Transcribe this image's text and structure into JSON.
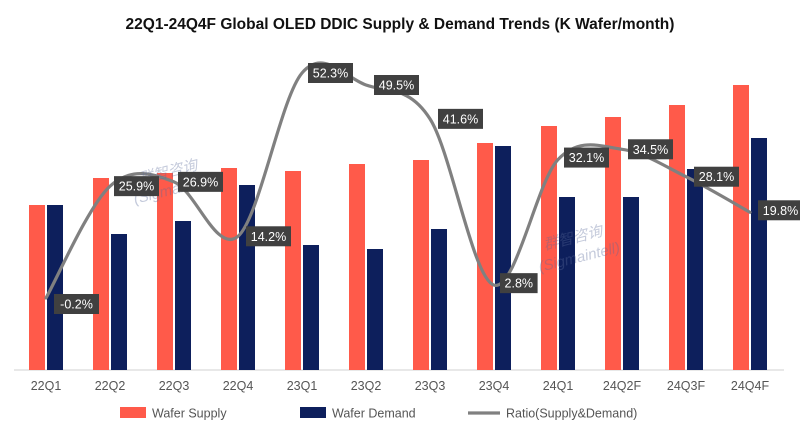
{
  "chart_data": {
    "type": "bar+line",
    "title": "22Q1-24Q4F Global OLED DDIC Supply & Demand Trends (K Wafer/month)",
    "categories": [
      "22Q1",
      "22Q2",
      "22Q3",
      "22Q4",
      "23Q1",
      "23Q2",
      "23Q3",
      "23Q4",
      "24Q1",
      "24Q2F",
      "24Q3F",
      "24Q4F"
    ],
    "series": [
      {
        "name": "Wafer Supply",
        "type": "bar",
        "color": "#ff5a4a",
        "values": [
          165,
          192,
          197,
          202,
          199,
          206,
          210,
          227,
          244,
          253,
          265,
          285
        ]
      },
      {
        "name": "Wafer Demand",
        "type": "bar",
        "color": "#0d1f5c",
        "values": [
          165,
          136,
          149,
          185,
          125,
          121,
          141,
          224,
          173,
          173,
          201,
          232
        ]
      },
      {
        "name": "Ratio(Supply&Demand)",
        "type": "line",
        "axis": "secondary",
        "color": "#808080",
        "values": [
          -0.2,
          25.9,
          26.9,
          14.2,
          52.3,
          49.5,
          41.6,
          2.8,
          32.1,
          34.5,
          28.1,
          19.8
        ],
        "labels": [
          "-0.2%",
          "25.9%",
          "26.9%",
          "14.2%",
          "52.3%",
          "49.5%",
          "41.6%",
          "2.8%",
          "32.1%",
          "34.5%",
          "28.1%",
          "19.8%"
        ]
      }
    ],
    "ylim": [
      0,
      320
    ],
    "y2lim": [
      -10,
      60
    ],
    "legend": "bottom",
    "grid": false,
    "watermark": [
      "群智咨询",
      "(Sigmaintell)"
    ]
  }
}
